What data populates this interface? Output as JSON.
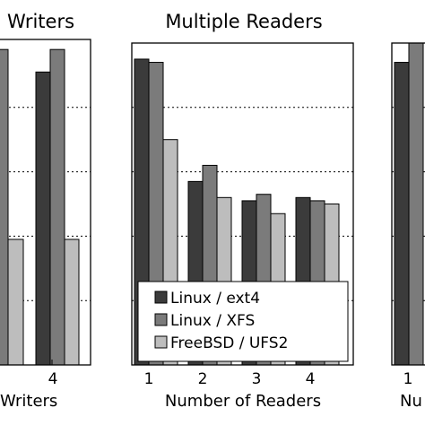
{
  "chart_data": [
    {
      "type": "bar",
      "title": "Writers",
      "xlabel": "Writers",
      "ylabel": "",
      "categories": [
        "4"
      ],
      "ylim": [
        0,
        100
      ],
      "grid": true,
      "series": [
        {
          "name": "Linux / ext4",
          "values": [
            91
          ]
        },
        {
          "name": "Linux / XFS",
          "values": [
            98
          ]
        },
        {
          "name": "FreeBSD / UFS2",
          "values": [
            39
          ]
        }
      ],
      "partial_series_left": [
        98,
        39
      ],
      "colors": [
        "#3b3b3b",
        "#7b7b7b",
        "#bdbdbd"
      ]
    },
    {
      "type": "bar",
      "title": "Multiple Readers",
      "xlabel": "Number of Readers",
      "ylabel": "",
      "categories": [
        "1",
        "2",
        "3",
        "4"
      ],
      "ylim": [
        0,
        100
      ],
      "grid": true,
      "legend": "bottom-right",
      "series": [
        {
          "name": "Linux / ext4",
          "values": [
            95,
            57,
            51,
            52
          ]
        },
        {
          "name": "Linux / XFS",
          "values": [
            94,
            62,
            53,
            51
          ]
        },
        {
          "name": "FreeBSD / UFS2",
          "values": [
            70,
            52,
            47,
            50
          ]
        }
      ],
      "colors": [
        "#3b3b3b",
        "#7b7b7b",
        "#bdbdbd"
      ]
    },
    {
      "type": "bar",
      "title": "",
      "xlabel": "Nu",
      "ylabel": "",
      "categories": [
        "1"
      ],
      "ylim": [
        0,
        100
      ],
      "grid": true,
      "series": [
        {
          "name": "Linux / ext4",
          "values": [
            94
          ]
        },
        {
          "name": "Linux / XFS",
          "values": [
            100
          ]
        }
      ],
      "colors": [
        "#3b3b3b",
        "#7b7b7b",
        "#bdbdbd"
      ]
    }
  ]
}
